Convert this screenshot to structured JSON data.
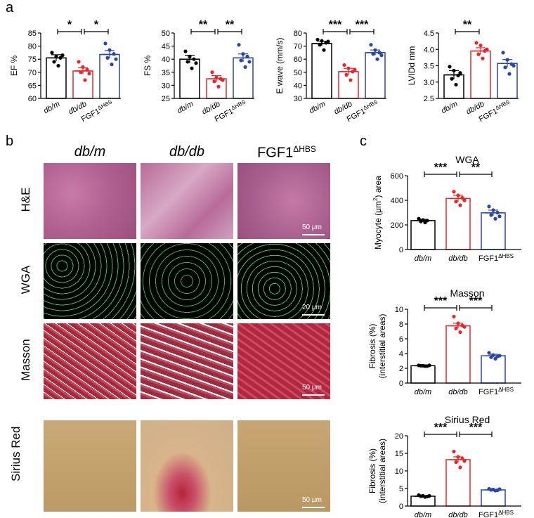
{
  "panel_labels": {
    "a": "a",
    "b": "b",
    "c": "c"
  },
  "groups": {
    "dbm": "db/m",
    "dbdb": "db/db",
    "fgf_base": "FGF1",
    "fgf_sup": "ΔHBS"
  },
  "colors": {
    "dbm": "#000000",
    "dbdb": "#e8262a",
    "fgf": "#2a47a8"
  },
  "micro": {
    "col_headers": [
      "db/m",
      "db/db",
      "FGF1ΔHBS"
    ],
    "rows": [
      {
        "label": "H&E",
        "scale": "50 μm"
      },
      {
        "label": "WGA",
        "scale": "20 μm"
      },
      {
        "label": "Masson",
        "scale": "50 μm"
      },
      {
        "label": "Sirius Red",
        "scale": "50 μm"
      }
    ]
  },
  "chart_data": [
    {
      "type": "bar",
      "panel": "a",
      "ylabel": "EF %",
      "ylim": [
        60,
        85
      ],
      "yticks": [
        60,
        65,
        70,
        75,
        80,
        85
      ],
      "categories": [
        "db/m",
        "db/db",
        "FGF1ΔHBS"
      ],
      "values": [
        75.5,
        70.5,
        76.8
      ],
      "errors": [
        1.2,
        1.2,
        1.5
      ],
      "points": [
        [
          77.5,
          76,
          75.5,
          74,
          72.5,
          76.5
        ],
        [
          74,
          72,
          71,
          70,
          67,
          69.5
        ],
        [
          81,
          78.5,
          77,
          75.5,
          73,
          75
        ]
      ],
      "significance": [
        {
          "from": 0,
          "to": 1,
          "label": "*"
        },
        {
          "from": 1,
          "to": 2,
          "label": "*"
        }
      ]
    },
    {
      "type": "bar",
      "panel": "a",
      "ylabel": "FS %",
      "ylim": [
        25,
        50
      ],
      "yticks": [
        25,
        30,
        35,
        40,
        45,
        50
      ],
      "categories": [
        "db/m",
        "db/db",
        "FGF1ΔHBS"
      ],
      "values": [
        40,
        32.5,
        40.5
      ],
      "errors": [
        1.5,
        1.2,
        1.5
      ],
      "points": [
        [
          43,
          41,
          40,
          39,
          36.5,
          38.5
        ],
        [
          35,
          33,
          32.5,
          31.5,
          29.5,
          32
        ],
        [
          45.5,
          42,
          41,
          39.5,
          37,
          39
        ]
      ],
      "significance": [
        {
          "from": 0,
          "to": 1,
          "label": "**"
        },
        {
          "from": 1,
          "to": 2,
          "label": "**"
        }
      ]
    },
    {
      "type": "bar",
      "panel": "a",
      "ylabel": "E wave (mm/s)",
      "ylim": [
        30,
        80
      ],
      "yticks": [
        30,
        40,
        50,
        60,
        70,
        80
      ],
      "categories": [
        "db/m",
        "db/db",
        "FGF1ΔHBS"
      ],
      "values": [
        72,
        50.5,
        65
      ],
      "errors": [
        1.8,
        2.5,
        2
      ],
      "points": [
        [
          75,
          74,
          72.5,
          71,
          67,
          73.5
        ],
        [
          55.5,
          53,
          50.5,
          48,
          44,
          52
        ],
        [
          71,
          67,
          65,
          64,
          60,
          63
        ]
      ],
      "significance": [
        {
          "from": 0,
          "to": 1,
          "label": "***"
        },
        {
          "from": 1,
          "to": 2,
          "label": "***"
        }
      ]
    },
    {
      "type": "bar",
      "panel": "a",
      "ylabel": "LVIDd mm",
      "ylim": [
        2.5,
        4.5
      ],
      "yticks": [
        2.5,
        3.0,
        3.5,
        4.0,
        4.5
      ],
      "categories": [
        "db/m",
        "db/db",
        "FGF1ΔHBS"
      ],
      "values": [
        3.22,
        3.95,
        3.57
      ],
      "errors": [
        0.13,
        0.1,
        0.12
      ],
      "points": [
        [
          3.47,
          3.35,
          3.2,
          3.1,
          2.92,
          3.28
        ],
        [
          4.2,
          4.12,
          3.95,
          3.85,
          3.72,
          4.0
        ],
        [
          3.9,
          3.68,
          3.55,
          3.45,
          3.25,
          3.5
        ]
      ],
      "significance": [
        {
          "from": 0,
          "to": 1,
          "label": "**"
        }
      ]
    },
    {
      "type": "bar",
      "panel": "c",
      "title": "WGA",
      "ylabel_line1": "Myocyte (μm",
      "ylabel_sup": "2",
      "ylabel_line2": ") area",
      "ylim": [
        0,
        600
      ],
      "yticks": [
        0,
        200,
        400,
        600
      ],
      "categories": [
        "db/m",
        "db/db",
        "FGF1ΔHBS"
      ],
      "values": [
        235,
        415,
        298
      ],
      "errors": [
        10,
        25,
        22
      ],
      "points": [
        [
          250,
          240,
          235,
          228,
          220
        ],
        [
          470,
          440,
          420,
          390,
          360,
          400
        ],
        [
          350,
          320,
          300,
          280,
          250,
          270
        ]
      ],
      "significance": [
        {
          "from": 0,
          "to": 1,
          "label": "***"
        },
        {
          "from": 1,
          "to": 2,
          "label": "**"
        }
      ]
    },
    {
      "type": "bar",
      "panel": "c",
      "title": "Masson",
      "ylabel_line1": "Fibrosis (%)",
      "ylabel_line2": "(interstitial areas)",
      "ylim": [
        0,
        10
      ],
      "yticks": [
        0,
        2,
        4,
        6,
        8,
        10
      ],
      "categories": [
        "db/m",
        "db/db",
        "FGF1ΔHBS"
      ],
      "values": [
        2.35,
        7.75,
        3.7
      ],
      "errors": [
        0.06,
        0.35,
        0.2
      ],
      "points": [
        [
          2.4,
          2.35,
          2.3,
          2.35,
          2.3,
          2.4
        ],
        [
          9.0,
          8.1,
          7.8,
          7.4,
          6.9,
          7.6
        ],
        [
          4.1,
          3.8,
          3.6,
          3.5,
          3.3,
          3.7
        ]
      ],
      "significance": [
        {
          "from": 0,
          "to": 1,
          "label": "***"
        },
        {
          "from": 1,
          "to": 2,
          "label": "***"
        }
      ]
    },
    {
      "type": "bar",
      "panel": "c",
      "title": "Sirius Red",
      "ylabel_line1": "Fibrosis (%)",
      "ylabel_line2": "(interstitial areas)",
      "ylim": [
        0,
        20
      ],
      "yticks": [
        0,
        5,
        10,
        15,
        20
      ],
      "categories": [
        "db/m",
        "db/db",
        "FGF1ΔHBS"
      ],
      "values": [
        2.8,
        13.2,
        4.6
      ],
      "errors": [
        0.2,
        0.8,
        0.15
      ],
      "points": [
        [
          3.1,
          2.9,
          2.7,
          2.8,
          2.6,
          2.9
        ],
        [
          15.5,
          14,
          13.5,
          12.5,
          11,
          12.8
        ],
        [
          4.9,
          4.7,
          4.5,
          4.6,
          4.4,
          4.8
        ]
      ],
      "significance": [
        {
          "from": 0,
          "to": 1,
          "label": "***"
        },
        {
          "from": 1,
          "to": 2,
          "label": "***"
        }
      ]
    }
  ]
}
